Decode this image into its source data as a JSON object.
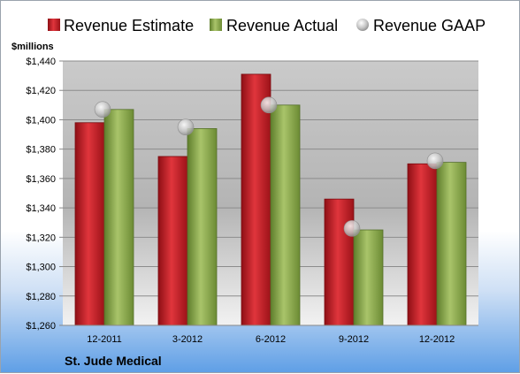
{
  "chart_data": {
    "type": "bar",
    "title": "",
    "xlabel": "",
    "ylabel": "$millions",
    "company": "St. Jude Medical",
    "categories": [
      "12-2011",
      "3-2012",
      "6-2012",
      "9-2012",
      "12-2012"
    ],
    "series": [
      {
        "name": "Revenue Estimate",
        "type": "bar",
        "color": "#c0161e",
        "values": [
          1398,
          1375,
          1431,
          1346,
          1370
        ]
      },
      {
        "name": "Revenue Actual",
        "type": "bar",
        "color": "#8aac4a",
        "values": [
          1407,
          1394,
          1410,
          1325,
          1371
        ]
      },
      {
        "name": "Revenue GAAP",
        "type": "marker",
        "color": "#b8b8b8",
        "values": [
          1407,
          1395,
          1410,
          1326,
          1372
        ]
      }
    ],
    "ylim": [
      1260,
      1440
    ],
    "ytick_step": 20,
    "ytick_labels": [
      "$1,260",
      "$1,280",
      "$1,300",
      "$1,320",
      "$1,340",
      "$1,360",
      "$1,380",
      "$1,400",
      "$1,420",
      "$1,440"
    ],
    "grid": true,
    "legend_position": "top"
  }
}
